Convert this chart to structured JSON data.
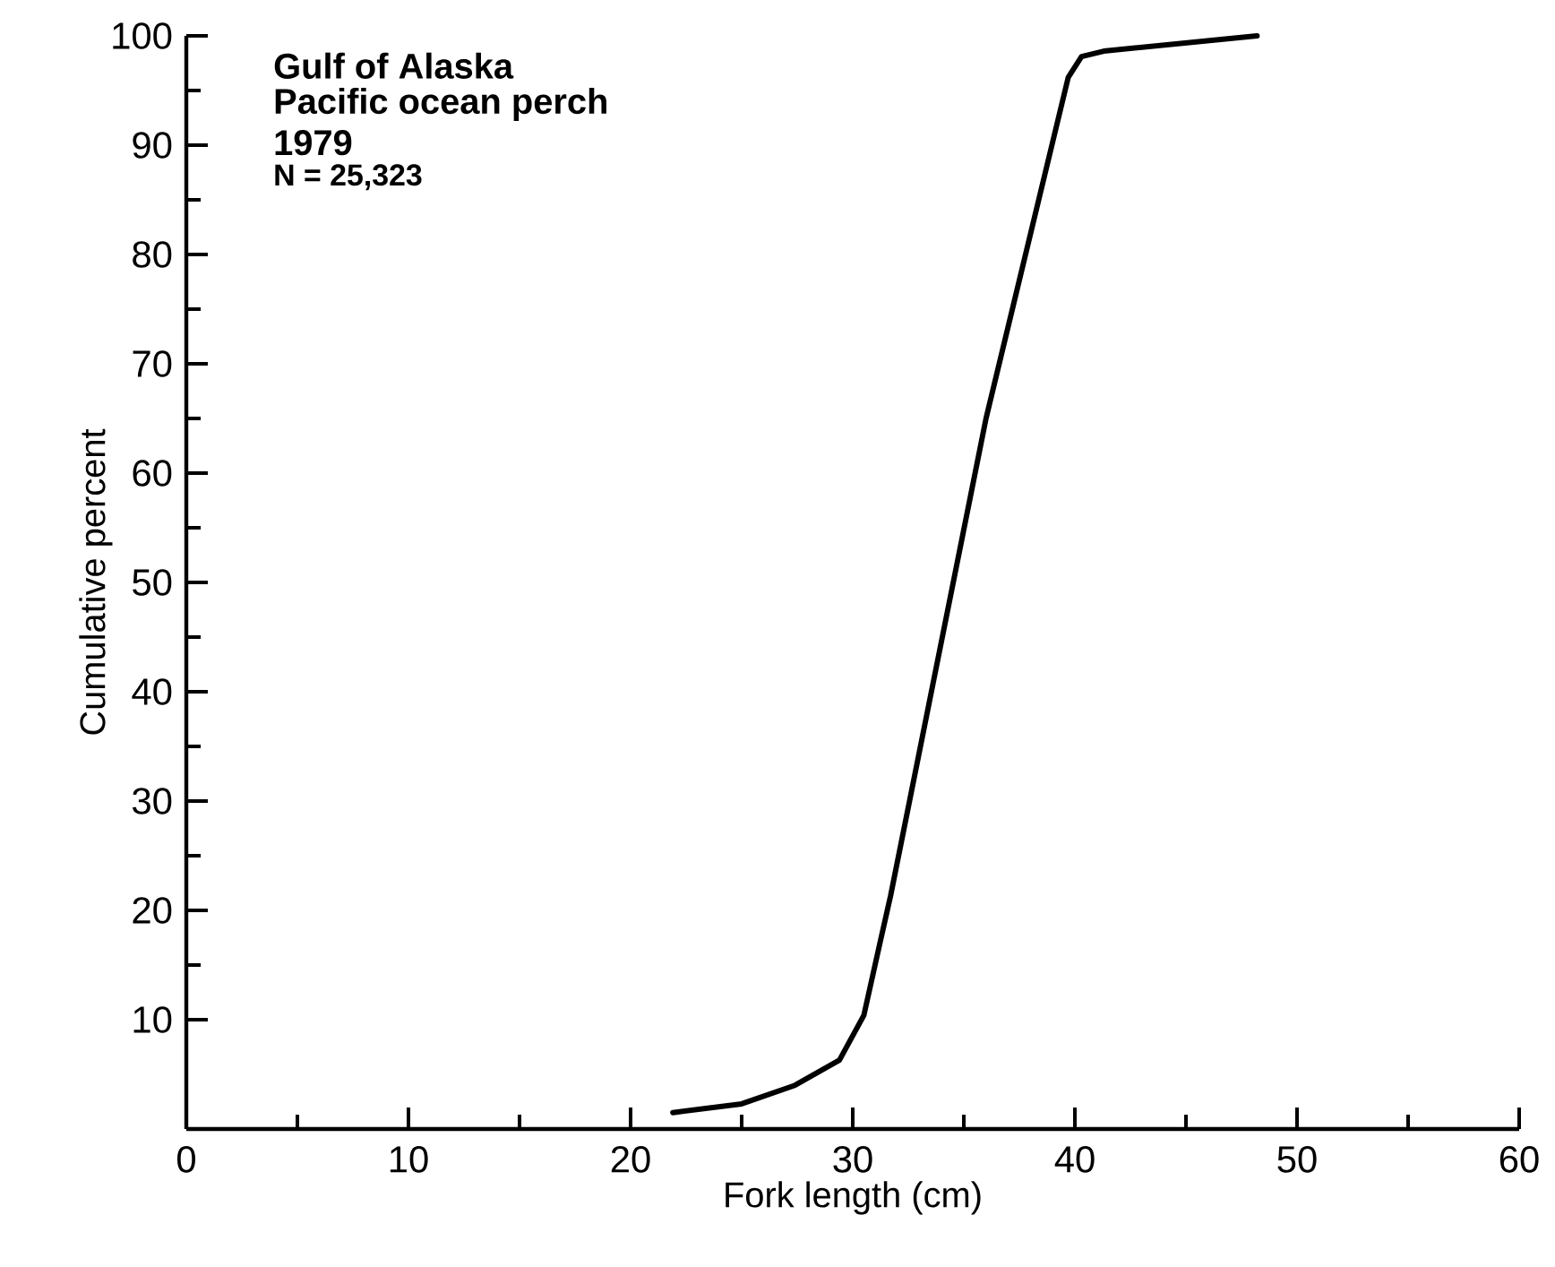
{
  "chart_data": {
    "type": "line",
    "xlabel": "Fork length (cm)",
    "ylabel": "Cumulative percent",
    "annotations": [
      "Gulf of Alaska",
      "Pacific ocean perch",
      "1979",
      "N = 25,323"
    ],
    "x": [
      21.9,
      25,
      27.4,
      29.4,
      30.5,
      31.2,
      31.7,
      36.0,
      39.7,
      40.3,
      41.3,
      48.2
    ],
    "values": [
      1.5,
      2.3,
      4,
      6.3,
      10.4,
      16.8,
      21.3,
      65,
      96.2,
      98.1,
      98.6,
      100
    ],
    "color": "#000000",
    "xlim": [
      0,
      60
    ],
    "xticks": [
      0,
      10,
      20,
      30,
      40,
      50,
      60
    ],
    "ylim": [
      0,
      100
    ],
    "yticks": [
      10,
      20,
      30,
      40,
      50,
      60,
      70,
      80,
      90,
      100
    ],
    "grid": false,
    "marker": "none",
    "line_style": "solid"
  }
}
